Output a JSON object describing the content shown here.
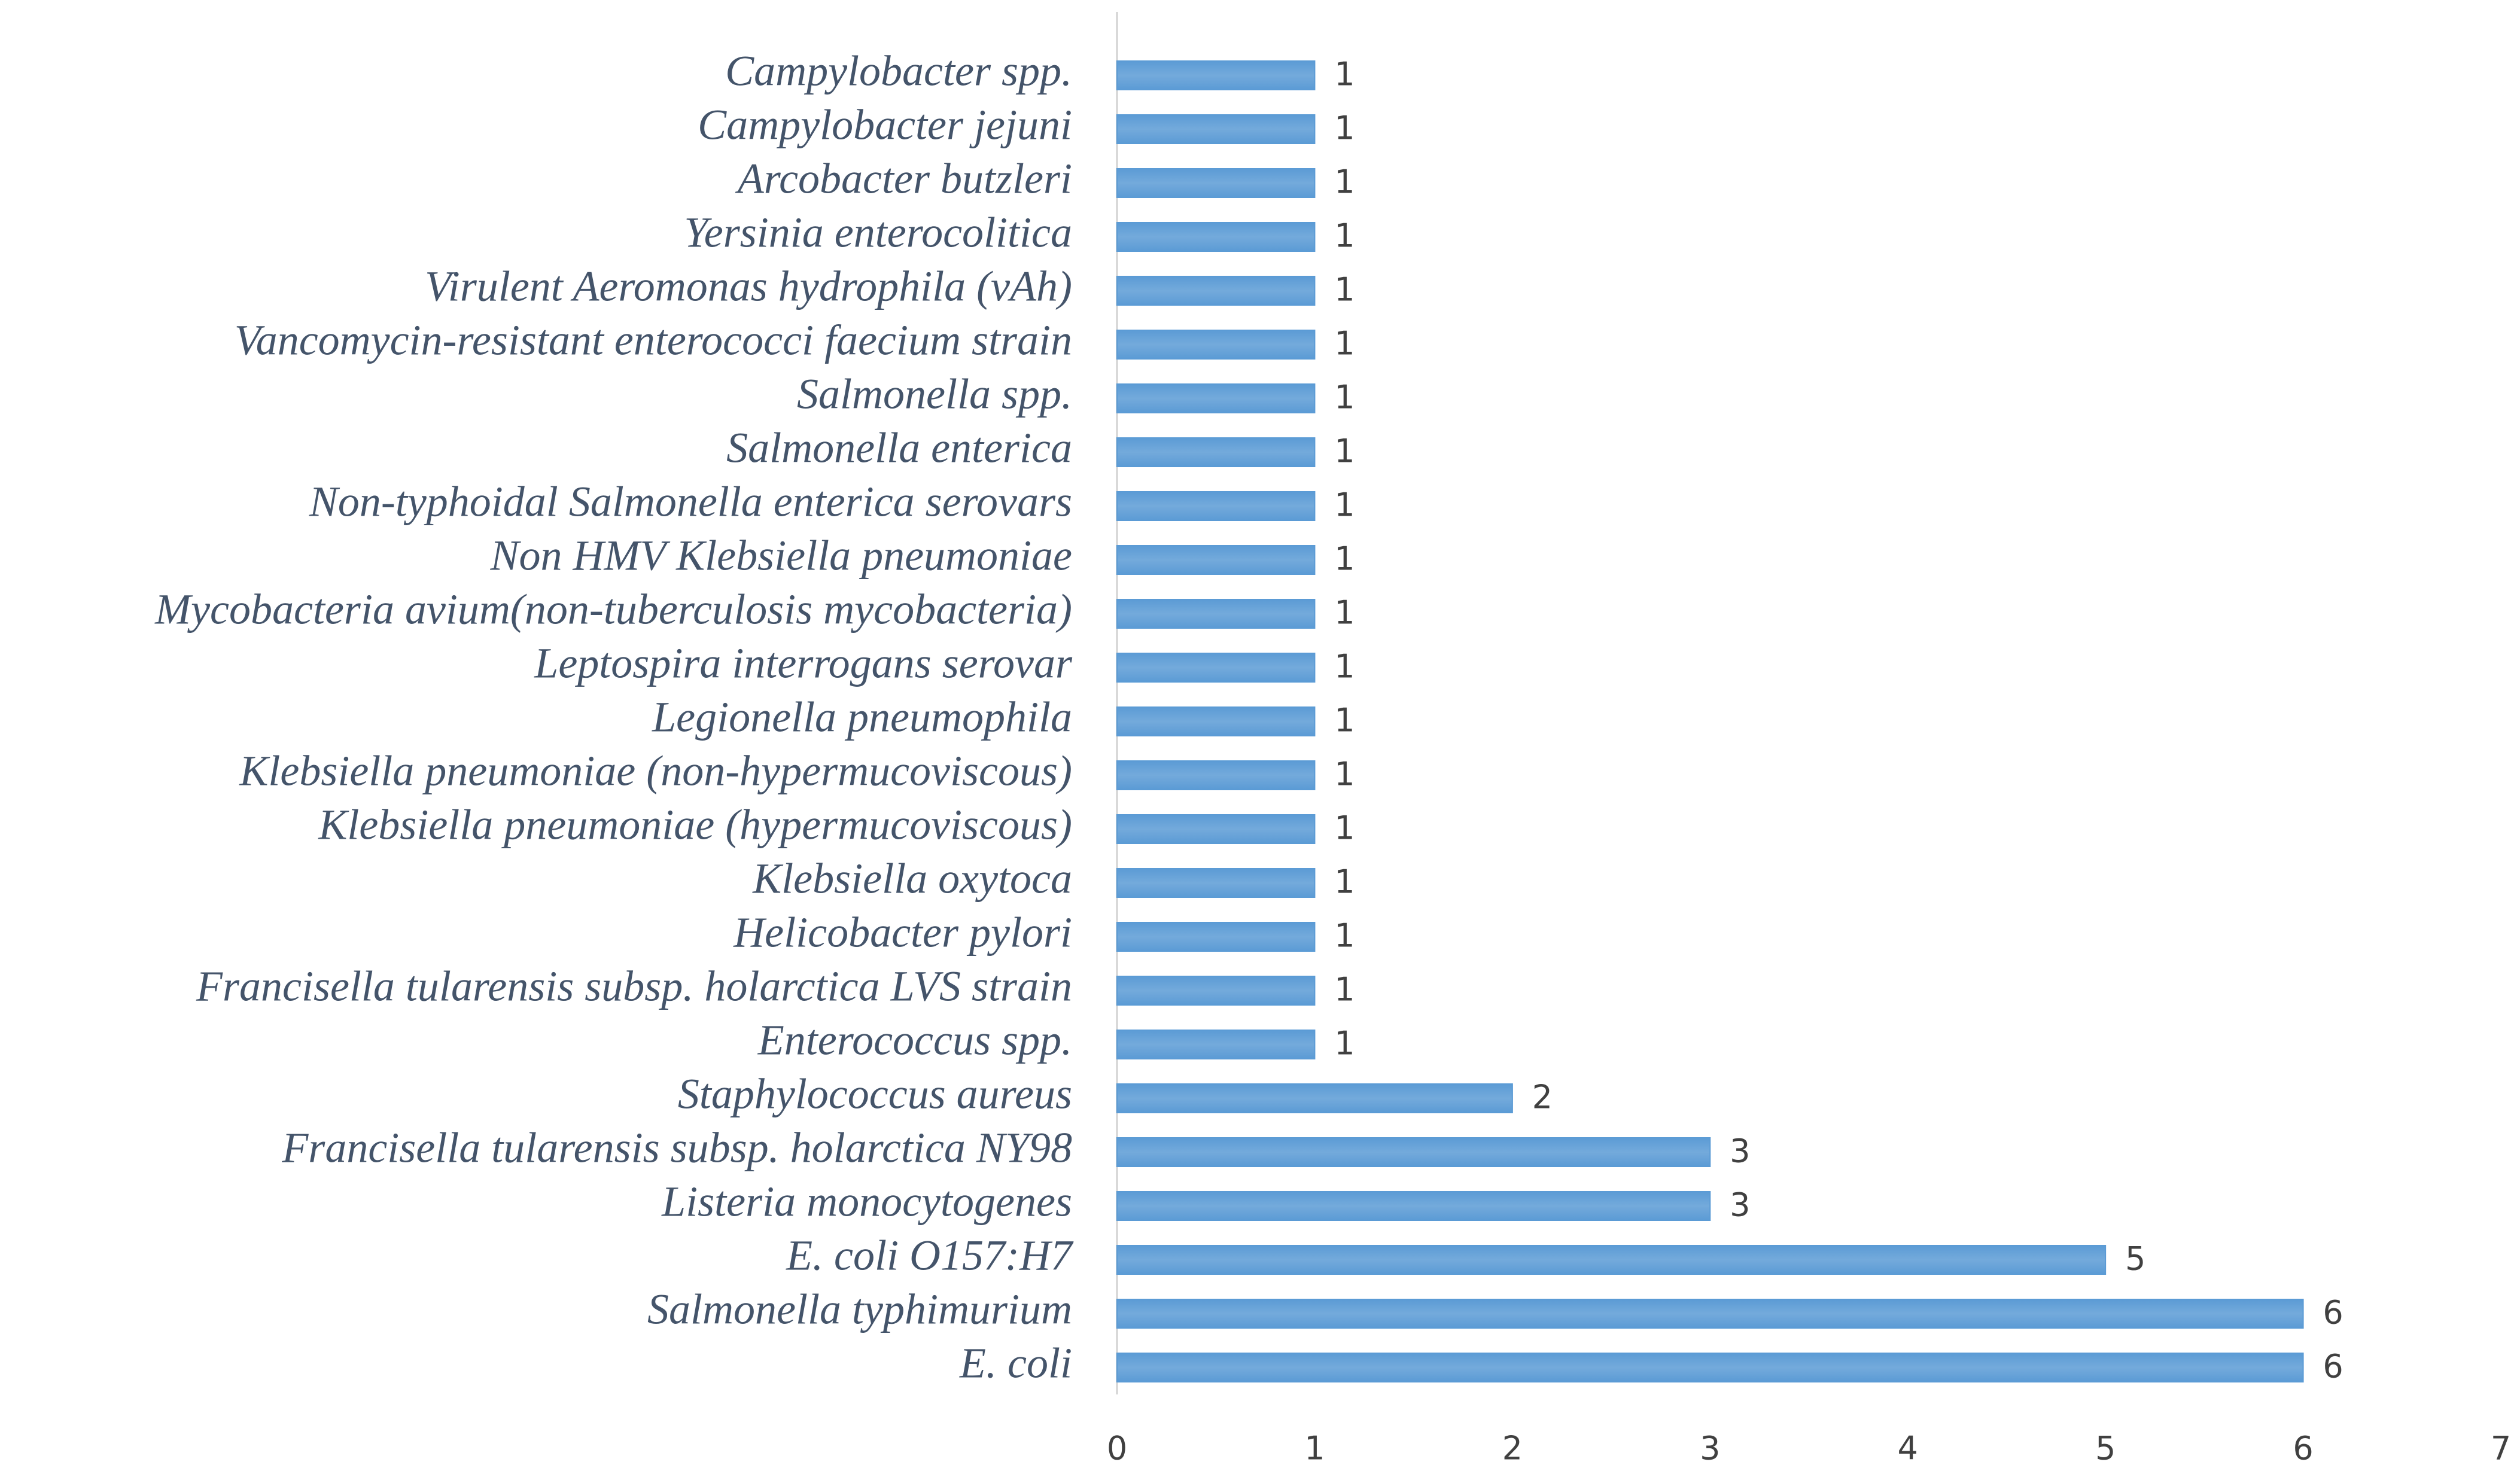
{
  "chart_data": {
    "type": "bar",
    "orientation": "horizontal",
    "categories": [
      "E. coli",
      "Salmonella typhimurium",
      "E. coli O157:H7",
      "Listeria monocytogenes",
      "Francisella tularensis subsp. holarctica NY98",
      "Staphylococcus aureus",
      "Enterococcus spp.",
      "Francisella tularensis subsp. holarctica  LVS  strain",
      "Helicobacter pylori",
      "Klebsiella oxytoca",
      "Klebsiella pneumoniae (hypermucoviscous)",
      "Klebsiella pneumoniae (non-hypermucoviscous)",
      "Legionella pneumophila",
      "Leptospira interrogans serovar",
      "Mycobacteria avium(non-tuberculosis mycobacteria)",
      "Non HMV Klebsiella pneumoniae",
      "Non-typhoidal Salmonella enterica serovars",
      "Salmonella enterica",
      "Salmonella spp.",
      "Vancomycin-resistant enterococci faecium strain",
      "Virulent Aeromonas hydrophila (vAh)",
      "Yersinia enterocolitica",
      "Arcobacter butzleri",
      "Campylobacter jejuni",
      "Campylobacter spp."
    ],
    "values": [
      6,
      6,
      5,
      3,
      3,
      2,
      1,
      1,
      1,
      1,
      1,
      1,
      1,
      1,
      1,
      1,
      1,
      1,
      1,
      1,
      1,
      1,
      1,
      1,
      1
    ],
    "color": "#5b9bd5",
    "xlim": [
      0,
      7
    ],
    "xticks": [
      0,
      1,
      2,
      3,
      4,
      5,
      6,
      7
    ],
    "grid": false
  }
}
